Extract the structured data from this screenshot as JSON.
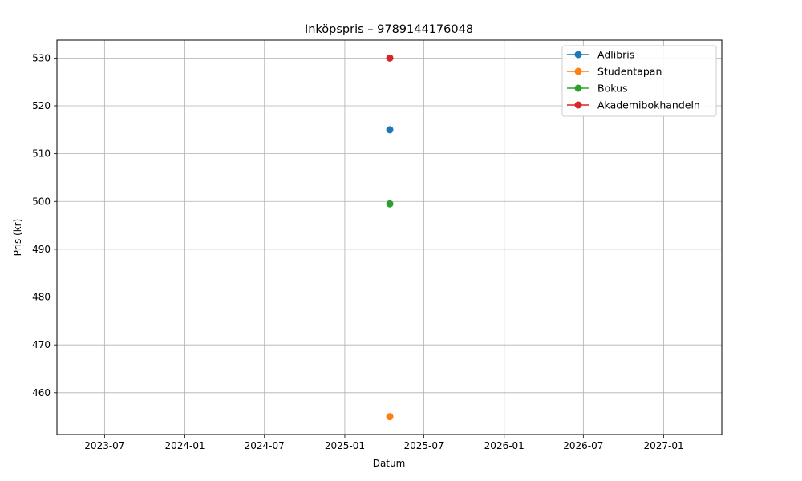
{
  "chart_data": {
    "type": "line",
    "title": "Inköpspris – 9789144176048",
    "xlabel": "Datum",
    "ylabel": "Pris (kr)",
    "x_axis_type": "date",
    "xlim": [
      "2023-03-14",
      "2027-05-14"
    ],
    "ylim": [
      451.25,
      533.75
    ],
    "x_ticks": [
      "2023-07",
      "2024-01",
      "2024-07",
      "2025-01",
      "2025-07",
      "2026-01",
      "2026-07",
      "2027-01"
    ],
    "y_ticks": [
      460,
      470,
      480,
      490,
      500,
      510,
      520,
      530
    ],
    "grid": true,
    "legend_position": "top-right",
    "series": [
      {
        "name": "Adlibris",
        "color": "#1f77b4",
        "marker": "circle",
        "points": [
          {
            "x": "2025-04-14",
            "y": 515
          }
        ]
      },
      {
        "name": "Studentapan",
        "color": "#ff7f0e",
        "marker": "circle",
        "points": [
          {
            "x": "2025-04-14",
            "y": 455
          }
        ]
      },
      {
        "name": "Bokus",
        "color": "#2ca02c",
        "marker": "circle",
        "points": [
          {
            "x": "2025-04-14",
            "y": 499.5
          }
        ]
      },
      {
        "name": "Akademibokhandeln",
        "color": "#d62728",
        "marker": "circle",
        "points": [
          {
            "x": "2025-04-14",
            "y": 530
          }
        ]
      }
    ]
  }
}
